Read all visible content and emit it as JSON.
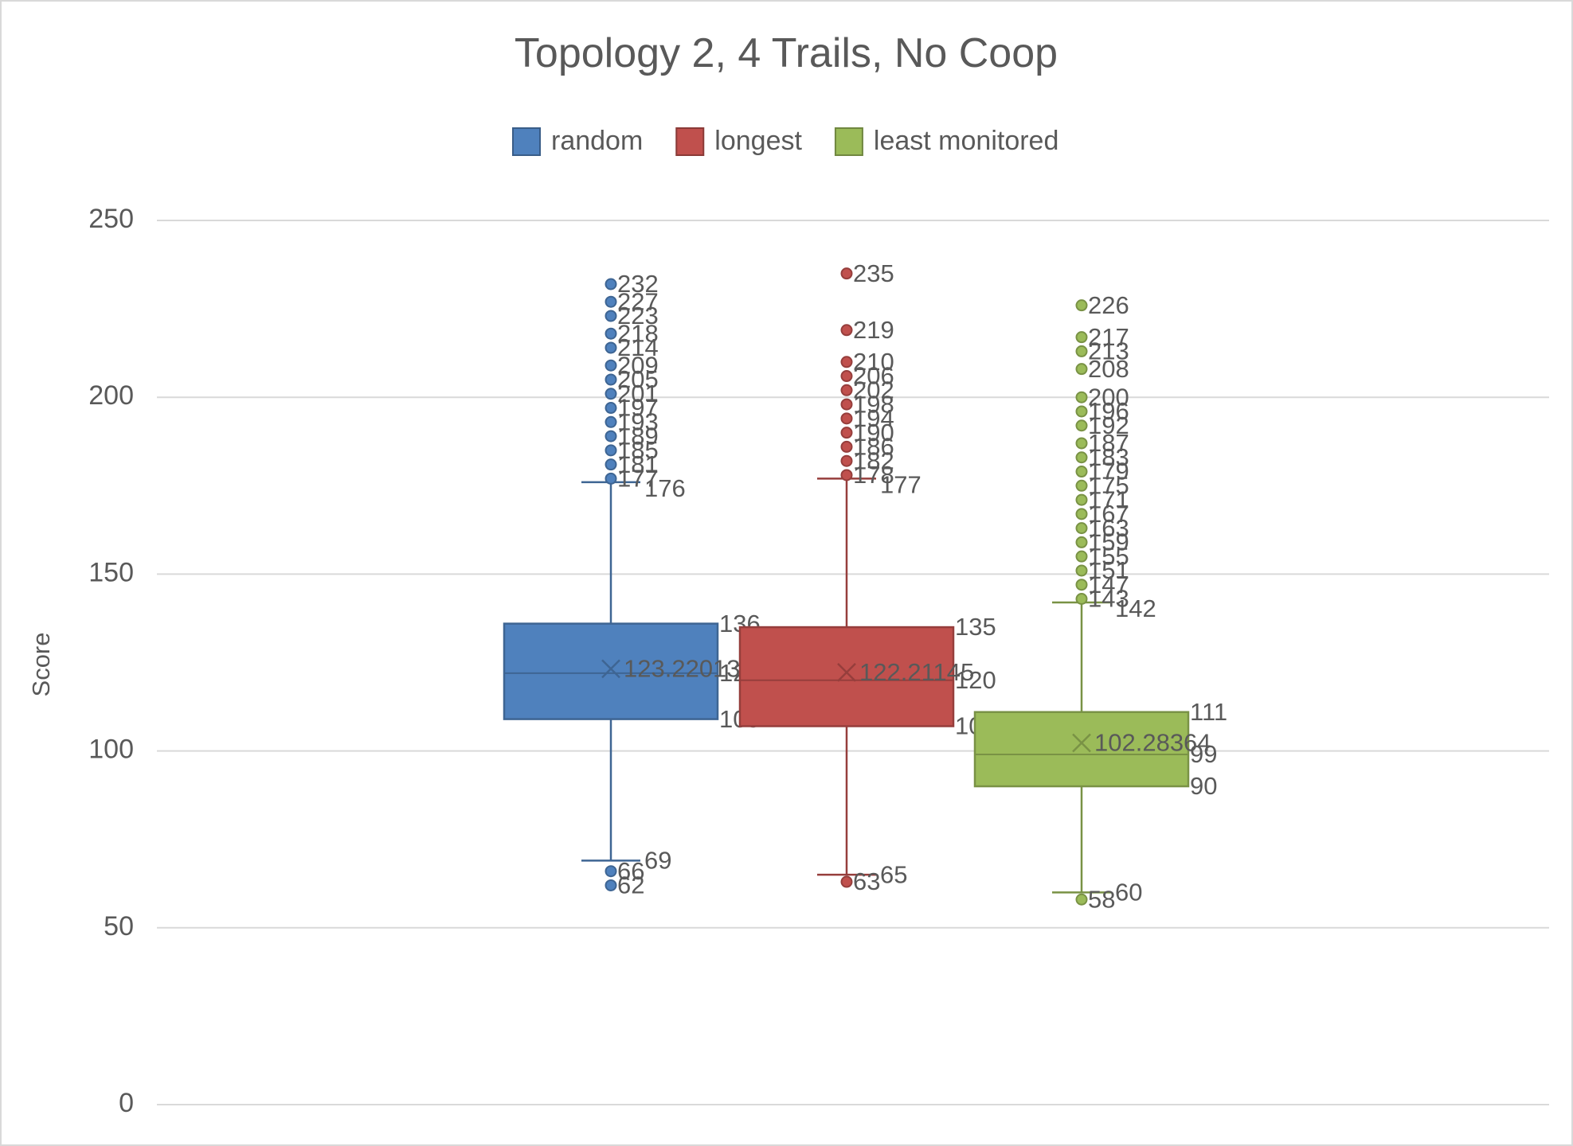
{
  "chart_data": {
    "type": "box",
    "title": "Topology 2, 4 Trails, No Coop",
    "xlabel": "",
    "ylabel": "Score",
    "ylim": [
      0,
      250
    ],
    "yticks": [
      0,
      50,
      100,
      150,
      200,
      250
    ],
    "grid": true,
    "legend": {
      "position": "top"
    },
    "series": [
      {
        "name": "random",
        "color": "#4F81BD",
        "whisker_low": 69,
        "q1": 109,
        "median": 122,
        "q3": 136,
        "whisker_high": 176,
        "mean": 123.22013,
        "outliers": [
          232,
          227,
          223,
          218,
          214,
          209,
          205,
          201,
          197,
          193,
          189,
          185,
          181,
          177,
          66,
          62
        ],
        "data_labels": {
          "q3": "136",
          "mean": "123.22013",
          "median": "122",
          "q1": "109",
          "whisker_high": "176",
          "whisker_low": "69"
        }
      },
      {
        "name": "longest",
        "color": "#C0504D",
        "whisker_low": 65,
        "q1": 107,
        "median": 120,
        "q3": 135,
        "whisker_high": 177,
        "mean": 122.21145,
        "outliers": [
          235,
          219,
          210,
          206,
          202,
          198,
          194,
          190,
          186,
          182,
          178,
          63
        ],
        "data_labels": {
          "q3": "135",
          "mean": "122.21145",
          "median": "120",
          "q1": "107",
          "whisker_high": "177",
          "whisker_low": "65"
        }
      },
      {
        "name": "least monitored",
        "color": "#9BBB59",
        "whisker_low": 60,
        "q1": 90,
        "median": 99,
        "q3": 111,
        "whisker_high": 142,
        "mean": 102.28364,
        "outliers": [
          226,
          217,
          213,
          208,
          200,
          196,
          192,
          187,
          183,
          179,
          175,
          171,
          167,
          163,
          159,
          155,
          151,
          147,
          143,
          58
        ],
        "data_labels": {
          "q3": "111",
          "mean": "102.28364",
          "median": "99",
          "q1": "90",
          "whisker_high": "142",
          "whisker_low": "60"
        }
      }
    ]
  }
}
